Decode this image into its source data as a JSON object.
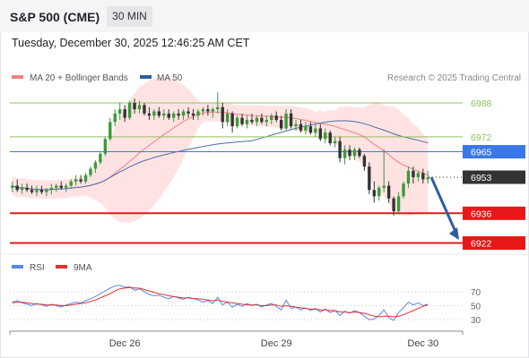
{
  "header": {
    "title": "S&P 500 (CME)",
    "timeframe": "30 MIN",
    "datetime": "Tuesday, December 30, 2025 12:46:25 AM CET"
  },
  "legend": {
    "ma20": "MA 20 + Bollinger Bands",
    "ma50": "MA 50",
    "credit": "Research © 2025 Trading Central"
  },
  "rsi_legend": {
    "rsi": "RSI",
    "ma": "9MA"
  },
  "colors": {
    "up": "#3a9a3a",
    "down": "#333333",
    "ma20": "#f08080",
    "band": "#ffe3e3",
    "ma50": "#4a6ea9",
    "rsi": "#5b86e5",
    "rsi_ma": "#e03030",
    "resistance": "#90c060",
    "pivot": "#3b78e7",
    "support": "#e81818",
    "arrow": "#2f5e9e"
  },
  "chart_data": [
    {
      "type": "candlestick",
      "x_labels": [
        "Dec 26",
        "Dec 29",
        "Dec 30"
      ],
      "ylim": [
        6918,
        6996
      ],
      "candles": [
        {
          "o": 6948,
          "h": 6951,
          "l": 6946,
          "c": 6949
        },
        {
          "o": 6949,
          "h": 6952,
          "l": 6946,
          "c": 6947
        },
        {
          "o": 6947,
          "h": 6950,
          "l": 6945,
          "c": 6948
        },
        {
          "o": 6948,
          "h": 6950,
          "l": 6946,
          "c": 6947
        },
        {
          "o": 6947,
          "h": 6949,
          "l": 6945,
          "c": 6946
        },
        {
          "o": 6946,
          "h": 6949,
          "l": 6944,
          "c": 6947
        },
        {
          "o": 6947,
          "h": 6949,
          "l": 6945,
          "c": 6946
        },
        {
          "o": 6946,
          "h": 6948,
          "l": 6944,
          "c": 6947
        },
        {
          "o": 6947,
          "h": 6950,
          "l": 6945,
          "c": 6948
        },
        {
          "o": 6948,
          "h": 6950,
          "l": 6946,
          "c": 6949
        },
        {
          "o": 6949,
          "h": 6951,
          "l": 6947,
          "c": 6948
        },
        {
          "o": 6948,
          "h": 6950,
          "l": 6946,
          "c": 6949
        },
        {
          "o": 6949,
          "h": 6952,
          "l": 6948,
          "c": 6951
        },
        {
          "o": 6951,
          "h": 6954,
          "l": 6949,
          "c": 6952
        },
        {
          "o": 6952,
          "h": 6954,
          "l": 6950,
          "c": 6951
        },
        {
          "o": 6951,
          "h": 6955,
          "l": 6950,
          "c": 6954
        },
        {
          "o": 6954,
          "h": 6958,
          "l": 6953,
          "c": 6957
        },
        {
          "o": 6957,
          "h": 6961,
          "l": 6955,
          "c": 6960
        },
        {
          "o": 6960,
          "h": 6965,
          "l": 6959,
          "c": 6964
        },
        {
          "o": 6964,
          "h": 6972,
          "l": 6963,
          "c": 6971
        },
        {
          "o": 6971,
          "h": 6981,
          "l": 6970,
          "c": 6979
        },
        {
          "o": 6979,
          "h": 6985,
          "l": 6977,
          "c": 6983
        },
        {
          "o": 6983,
          "h": 6988,
          "l": 6980,
          "c": 6985
        },
        {
          "o": 6985,
          "h": 6987,
          "l": 6979,
          "c": 6981
        },
        {
          "o": 6981,
          "h": 6989,
          "l": 6980,
          "c": 6988
        },
        {
          "o": 6988,
          "h": 6990,
          "l": 6983,
          "c": 6985
        },
        {
          "o": 6985,
          "h": 6989,
          "l": 6983,
          "c": 6987
        },
        {
          "o": 6987,
          "h": 6988,
          "l": 6982,
          "c": 6983
        },
        {
          "o": 6983,
          "h": 6986,
          "l": 6980,
          "c": 6982
        },
        {
          "o": 6982,
          "h": 6985,
          "l": 6980,
          "c": 6984
        },
        {
          "o": 6984,
          "h": 6986,
          "l": 6981,
          "c": 6982
        },
        {
          "o": 6982,
          "h": 6985,
          "l": 6980,
          "c": 6983
        },
        {
          "o": 6983,
          "h": 6985,
          "l": 6980,
          "c": 6981
        },
        {
          "o": 6981,
          "h": 6984,
          "l": 6979,
          "c": 6983
        },
        {
          "o": 6983,
          "h": 6985,
          "l": 6980,
          "c": 6982
        },
        {
          "o": 6982,
          "h": 6985,
          "l": 6980,
          "c": 6984
        },
        {
          "o": 6984,
          "h": 6986,
          "l": 6981,
          "c": 6983
        },
        {
          "o": 6983,
          "h": 6985,
          "l": 6980,
          "c": 6982
        },
        {
          "o": 6982,
          "h": 6985,
          "l": 6980,
          "c": 6984
        },
        {
          "o": 6984,
          "h": 6986,
          "l": 6982,
          "c": 6985
        },
        {
          "o": 6985,
          "h": 6987,
          "l": 6982,
          "c": 6984
        },
        {
          "o": 6984,
          "h": 6986,
          "l": 6981,
          "c": 6985
        },
        {
          "o": 6985,
          "h": 6993,
          "l": 6983,
          "c": 6986
        },
        {
          "o": 6986,
          "h": 6988,
          "l": 6976,
          "c": 6979
        },
        {
          "o": 6979,
          "h": 6985,
          "l": 6977,
          "c": 6983
        },
        {
          "o": 6983,
          "h": 6984,
          "l": 6974,
          "c": 6977
        },
        {
          "o": 6977,
          "h": 6982,
          "l": 6976,
          "c": 6981
        },
        {
          "o": 6981,
          "h": 6983,
          "l": 6977,
          "c": 6978
        },
        {
          "o": 6978,
          "h": 6982,
          "l": 6976,
          "c": 6980
        },
        {
          "o": 6980,
          "h": 6983,
          "l": 6978,
          "c": 6979
        },
        {
          "o": 6979,
          "h": 6982,
          "l": 6977,
          "c": 6981
        },
        {
          "o": 6981,
          "h": 6983,
          "l": 6978,
          "c": 6979
        },
        {
          "o": 6979,
          "h": 6982,
          "l": 6977,
          "c": 6980
        },
        {
          "o": 6980,
          "h": 6983,
          "l": 6978,
          "c": 6982
        },
        {
          "o": 6982,
          "h": 6984,
          "l": 6979,
          "c": 6980
        },
        {
          "o": 6980,
          "h": 6982,
          "l": 6975,
          "c": 6976
        },
        {
          "o": 6976,
          "h": 6985,
          "l": 6975,
          "c": 6983
        },
        {
          "o": 6983,
          "h": 6985,
          "l": 6976,
          "c": 6977
        },
        {
          "o": 6977,
          "h": 6980,
          "l": 6975,
          "c": 6978
        },
        {
          "o": 6978,
          "h": 6980,
          "l": 6974,
          "c": 6975
        },
        {
          "o": 6975,
          "h": 6979,
          "l": 6973,
          "c": 6977
        },
        {
          "o": 6977,
          "h": 6979,
          "l": 6973,
          "c": 6974
        },
        {
          "o": 6974,
          "h": 6978,
          "l": 6972,
          "c": 6976
        },
        {
          "o": 6976,
          "h": 6978,
          "l": 6970,
          "c": 6971
        },
        {
          "o": 6971,
          "h": 6976,
          "l": 6969,
          "c": 6974
        },
        {
          "o": 6974,
          "h": 6975,
          "l": 6968,
          "c": 6969
        },
        {
          "o": 6969,
          "h": 6972,
          "l": 6967,
          "c": 6970
        },
        {
          "o": 6970,
          "h": 6972,
          "l": 6960,
          "c": 6962
        },
        {
          "o": 6962,
          "h": 6968,
          "l": 6959,
          "c": 6966
        },
        {
          "o": 6966,
          "h": 6968,
          "l": 6961,
          "c": 6963
        },
        {
          "o": 6963,
          "h": 6967,
          "l": 6961,
          "c": 6966
        },
        {
          "o": 6966,
          "h": 6967,
          "l": 6962,
          "c": 6963
        },
        {
          "o": 6963,
          "h": 6964,
          "l": 6956,
          "c": 6958
        },
        {
          "o": 6958,
          "h": 6960,
          "l": 6945,
          "c": 6947
        },
        {
          "o": 6947,
          "h": 6951,
          "l": 6941,
          "c": 6944
        },
        {
          "o": 6944,
          "h": 6949,
          "l": 6942,
          "c": 6948
        },
        {
          "o": 6948,
          "h": 6966,
          "l": 6946,
          "c": 6949
        },
        {
          "o": 6949,
          "h": 6951,
          "l": 6941,
          "c": 6943
        },
        {
          "o": 6943,
          "h": 6944,
          "l": 6935,
          "c": 6937
        },
        {
          "o": 6937,
          "h": 6946,
          "l": 6936,
          "c": 6944
        },
        {
          "o": 6944,
          "h": 6951,
          "l": 6943,
          "c": 6950
        },
        {
          "o": 6950,
          "h": 6958,
          "l": 6948,
          "c": 6956
        },
        {
          "o": 6956,
          "h": 6958,
          "l": 6950,
          "c": 6953
        },
        {
          "o": 6953,
          "h": 6956,
          "l": 6951,
          "c": 6955
        },
        {
          "o": 6955,
          "h": 6957,
          "l": 6950,
          "c": 6952
        },
        {
          "o": 6952,
          "h": 6956,
          "l": 6950,
          "c": 6953
        }
      ],
      "levels": [
        {
          "label": "6988",
          "value": 6988,
          "kind": "resistance"
        },
        {
          "label": "6972",
          "value": 6972,
          "kind": "resistance"
        },
        {
          "label": "6965",
          "value": 6965,
          "kind": "pivot"
        },
        {
          "label": "6953",
          "value": 6953,
          "kind": "last"
        },
        {
          "label": "6936",
          "value": 6936,
          "kind": "support"
        },
        {
          "label": "6922",
          "value": 6922,
          "kind": "support"
        }
      ]
    },
    {
      "type": "line",
      "name": "RSI",
      "ylim": [
        20,
        80
      ],
      "yticks": [
        70,
        50,
        30
      ],
      "rsi": [
        55,
        57,
        54,
        52,
        50,
        53,
        51,
        49,
        52,
        50,
        48,
        51,
        53,
        55,
        54,
        57,
        60,
        63,
        67,
        71,
        75,
        78,
        79,
        76,
        77,
        72,
        74,
        70,
        66,
        64,
        65,
        62,
        60,
        63,
        61,
        59,
        62,
        60,
        58,
        55,
        57,
        53,
        62,
        51,
        55,
        48,
        52,
        49,
        53,
        50,
        52,
        48,
        51,
        53,
        49,
        44,
        58,
        46,
        48,
        44,
        47,
        43,
        46,
        41,
        45,
        40,
        43,
        36,
        42,
        39,
        43,
        40,
        35,
        30,
        31,
        36,
        44,
        33,
        29,
        40,
        47,
        55,
        51,
        54,
        50,
        52
      ],
      "rsi_ma": [
        54,
        55,
        55,
        54,
        53,
        52,
        52,
        51,
        51,
        51,
        50,
        50,
        51,
        52,
        53,
        54,
        56,
        58,
        61,
        64,
        67,
        71,
        74,
        75,
        76,
        75,
        75,
        73,
        71,
        69,
        67,
        66,
        64,
        63,
        62,
        61,
        61,
        60,
        60,
        59,
        58,
        57,
        58,
        56,
        55,
        54,
        53,
        52,
        51,
        51,
        51,
        50,
        50,
        51,
        51,
        49,
        50,
        49,
        48,
        47,
        46,
        45,
        45,
        44,
        44,
        43,
        43,
        41,
        41,
        40,
        41,
        40,
        39,
        37,
        35,
        34,
        35,
        35,
        34,
        35,
        37,
        40,
        43,
        46,
        49,
        51
      ]
    }
  ]
}
